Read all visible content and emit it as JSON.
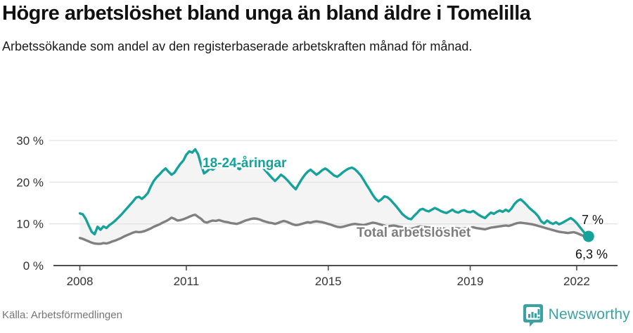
{
  "header": {
    "title": "Högre arbetslöshet bland unga än bland äldre i Tomelilla",
    "subtitle": "Arbetssökande som andel av den registerbaserade arbetskraften månad för månad."
  },
  "chart_data": {
    "type": "line",
    "title": "Högre arbetslöshet bland unga än bland äldre i Tomelilla",
    "subtitle": "Arbetssökande som andel av den registerbaserade arbetskraften månad för månad.",
    "x_unit": "month",
    "x_start": "2008-01",
    "x_end": "2022-05",
    "x_ticks": [
      2008,
      2011,
      2015,
      2019,
      2022
    ],
    "y_ticks": [
      0,
      10,
      20,
      30
    ],
    "y_tick_suffix": " %",
    "ylim": [
      0,
      32
    ],
    "grid": "horizontal",
    "band_fill_between_series": true,
    "series": [
      {
        "name": "18-24-åringar",
        "color": "#14a29a",
        "end_label": "7 %",
        "end_value": 7.0,
        "values": [
          12.5,
          12.3,
          11.2,
          9.6,
          8.1,
          7.5,
          9.3,
          8.6,
          9.4,
          9.0,
          9.7,
          10.2,
          10.8,
          11.5,
          12.2,
          13.0,
          13.8,
          14.6,
          15.4,
          16.3,
          16.5,
          16.0,
          16.6,
          17.4,
          19.0,
          20.3,
          21.2,
          21.9,
          22.7,
          23.3,
          22.5,
          21.8,
          22.3,
          23.4,
          24.4,
          25.2,
          26.6,
          27.4,
          27.1,
          27.9,
          26.7,
          24.2,
          22.1,
          22.6,
          23.3,
          23.0,
          23.6,
          24.1,
          24.4,
          25.4,
          25.2,
          24.7,
          24.2,
          23.5,
          23.1,
          23.8,
          24.3,
          24.6,
          24.1,
          23.8,
          23.6,
          24.1,
          23.4,
          22.6,
          21.8,
          21.0,
          20.3,
          21.0,
          21.8,
          21.3,
          20.6,
          19.8,
          19.0,
          18.3,
          19.5,
          20.7,
          21.7,
          22.5,
          23.0,
          22.4,
          21.8,
          22.3,
          22.9,
          23.3,
          22.8,
          22.2,
          21.6,
          21.3,
          21.8,
          22.4,
          22.9,
          23.3,
          23.5,
          23.1,
          22.4,
          21.6,
          20.5,
          19.3,
          18.2,
          17.0,
          16.0,
          15.4,
          15.9,
          16.6,
          16.4,
          15.8,
          15.0,
          14.2,
          13.3,
          12.4,
          11.8,
          11.3,
          11.1,
          11.9,
          12.6,
          13.4,
          13.6,
          13.2,
          13.0,
          13.4,
          13.8,
          13.5,
          13.1,
          12.8,
          12.6,
          13.0,
          13.4,
          12.9,
          12.7,
          13.1,
          13.3,
          12.9,
          12.8,
          13.1,
          12.6,
          12.1,
          11.7,
          11.4,
          12.1,
          12.7,
          12.4,
          12.9,
          13.2,
          12.9,
          13.4,
          13.0,
          13.7,
          14.8,
          15.5,
          15.9,
          15.3,
          14.6,
          13.8,
          13.2,
          12.6,
          11.8,
          10.6,
          10.1,
          10.8,
          10.3,
          10.0,
          10.4,
          9.9,
          10.2,
          10.6,
          11.0,
          11.4,
          10.9,
          10.2,
          9.3,
          8.4,
          7.5,
          7.0
        ]
      },
      {
        "name": "Total arbetslöshet",
        "color": "#808080",
        "end_label": "6,3 %",
        "end_value": 6.3,
        "values": [
          6.6,
          6.4,
          6.1,
          5.8,
          5.5,
          5.3,
          5.2,
          5.2,
          5.4,
          5.3,
          5.5,
          5.8,
          6.0,
          6.3,
          6.6,
          7.0,
          7.3,
          7.6,
          7.9,
          8.1,
          8.0,
          8.1,
          8.3,
          8.6,
          8.9,
          9.3,
          9.6,
          9.9,
          10.3,
          10.6,
          11.0,
          11.5,
          11.2,
          10.8,
          10.9,
          11.1,
          11.4,
          11.7,
          12.0,
          12.2,
          11.7,
          11.2,
          10.5,
          10.3,
          10.6,
          10.8,
          10.7,
          10.9,
          10.7,
          10.5,
          10.4,
          10.2,
          10.1,
          10.0,
          10.2,
          10.5,
          10.8,
          11.0,
          11.2,
          11.3,
          11.2,
          11.0,
          10.7,
          10.5,
          10.3,
          10.2,
          10.0,
          10.2,
          10.5,
          10.7,
          10.5,
          10.2,
          9.9,
          9.7,
          9.8,
          10.0,
          10.2,
          10.4,
          10.3,
          10.5,
          10.6,
          10.5,
          10.4,
          10.2,
          10.0,
          9.8,
          9.5,
          9.3,
          9.2,
          9.3,
          9.5,
          9.7,
          9.9,
          10.0,
          9.9,
          9.8,
          9.7,
          9.9,
          10.1,
          10.3,
          10.2,
          10.0,
          9.8,
          9.6,
          9.4,
          9.5,
          9.6,
          9.5,
          9.3,
          9.2,
          9.0,
          8.9,
          8.8,
          9.0,
          9.2,
          9.4,
          9.3,
          9.2,
          9.1,
          9.2,
          9.3,
          9.2,
          9.0,
          8.9,
          8.8,
          8.7,
          8.9,
          9.0,
          8.9,
          8.8,
          8.9,
          9.0,
          9.1,
          9.2,
          9.0,
          8.9,
          8.8,
          8.7,
          8.9,
          9.1,
          9.2,
          9.3,
          9.4,
          9.5,
          9.6,
          9.5,
          9.7,
          10.0,
          10.2,
          10.3,
          10.2,
          10.1,
          10.0,
          9.9,
          9.7,
          9.5,
          9.3,
          9.1,
          8.9,
          8.7,
          8.5,
          8.3,
          8.1,
          8.0,
          7.9,
          7.8,
          7.9,
          8.0,
          7.8,
          7.5,
          7.2,
          6.8,
          6.3
        ]
      }
    ],
    "annotations": [
      {
        "text": "18-24-åringar",
        "color": "#14a29a"
      },
      {
        "text": "Total arbetslöshet",
        "color": "#7d7d7d"
      }
    ]
  },
  "footer": {
    "source": "Källa: Arbetsförmedlingen",
    "logo_text": "Newsworthy"
  },
  "colors": {
    "accent_teal": "#14a29a",
    "line_gray": "#808080",
    "band_fill": "#f4f4f4",
    "gridline": "#e4e4e4",
    "axis": "#4d4d4d",
    "tick_text": "#333333",
    "value_text": "#111111"
  }
}
